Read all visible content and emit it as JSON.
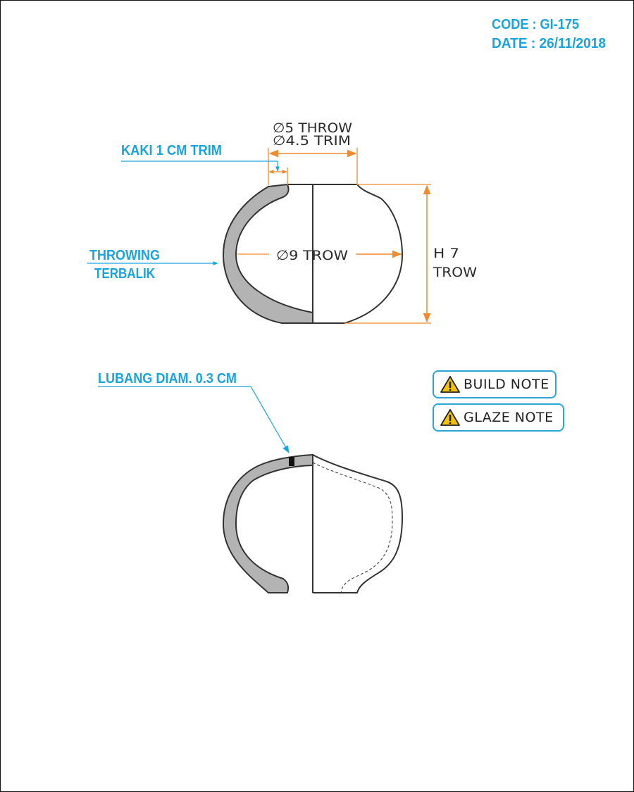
{
  "header": {
    "code": "CODE : GI-175",
    "date": "DATE : 26/11/2018"
  },
  "annotations": {
    "diameter_throw": "∅5 THROW",
    "diameter_trim": "∅4.5 TRIM",
    "foot_trim": "KAKI 1 CM TRIM",
    "throwing_line1": "THROWING",
    "throwing_line2": "TERBALIK",
    "body_diameter": "∅9 TROW",
    "height_line1": "H 7",
    "height_line2": "TROW",
    "hole": "LUBANG DIAM. 0.3 CM"
  },
  "notes": {
    "build": "BUILD NOTE",
    "glaze": "GLAZE NOTE"
  },
  "colors": {
    "accent_blue": "#1aa4dd",
    "dimension_orange": "#f28a2e",
    "section_fill": "#b3b3b3",
    "outline": "#333333",
    "warning_yellow": "#f5c400"
  }
}
